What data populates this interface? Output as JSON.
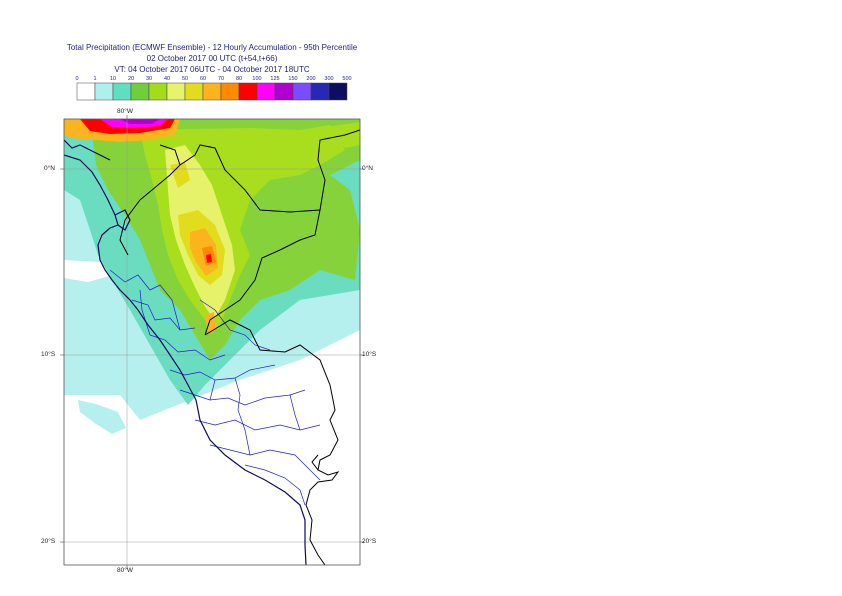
{
  "title": {
    "line1": "Total Precipitation (ECMWF Ensemble) - 12 Hourly Accumulation - 95th Percentile",
    "line2": "02 October 2017 00 UTC (t+54,t+66)",
    "line3": "VT: 04 October 2017 06UTC - 04 October 2017 18UTC"
  },
  "legend": {
    "ticks": [
      "0",
      "1",
      "10",
      "20",
      "30",
      "40",
      "50",
      "60",
      "70",
      "80",
      "100",
      "125",
      "150",
      "200",
      "300",
      "500"
    ],
    "colors": [
      "#ffffff",
      "#aef0ee",
      "#5ee0c0",
      "#6fce3a",
      "#a4dc1c",
      "#e7f46a",
      "#e2dc1c",
      "#fbb41d",
      "#ff8a00",
      "#ff0000",
      "#ff00ff",
      "#b000d0",
      "#7a4cff",
      "#2727b8",
      "#0e0e60"
    ]
  },
  "axes": {
    "lat_labels": [
      "0°N",
      "10°S",
      "20°S"
    ],
    "lon_labels": [
      "80°W",
      "80°W"
    ]
  },
  "map_colors": {
    "sea": "#b6f0ee",
    "land_low": "#6adcc0",
    "green": "#86d23a",
    "lime": "#a8de1e",
    "yellow": "#e6f26a",
    "gold": "#e2dc1c",
    "orange": "#fbb41d",
    "dark_orange": "#ff8a00",
    "red": "#ff0000",
    "magenta": "#ff00ff",
    "purple": "#b000d0",
    "coast": "#0b0b5a",
    "border": "#000000",
    "region": "#1f1fd0",
    "grid": "#999999"
  }
}
